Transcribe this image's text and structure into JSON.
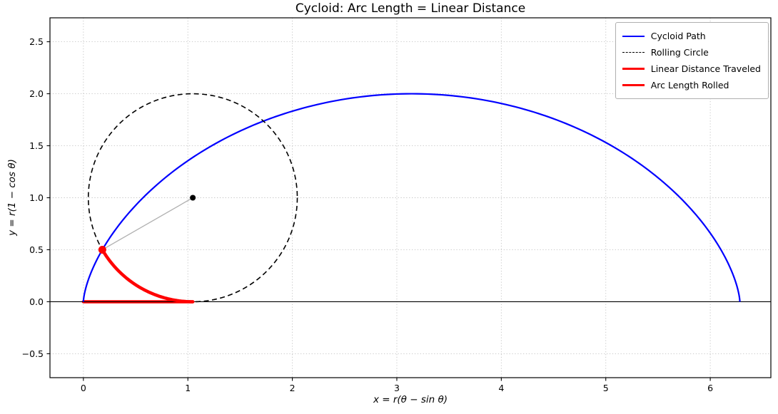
{
  "chart_data": {
    "type": "line",
    "title": "Cycloid: Arc Length = Linear Distance",
    "xlabel": "x = r(θ − sin θ)",
    "ylabel": "y = r(1 − cos θ)",
    "xlim": [
      -0.32,
      6.58
    ],
    "ylim": [
      -0.73,
      2.73
    ],
    "xticks": [
      0,
      1,
      2,
      3,
      4,
      5,
      6
    ],
    "xtick_labels": [
      "0",
      "1",
      "2",
      "3",
      "4",
      "5",
      "6"
    ],
    "yticks": [
      -0.5,
      0.0,
      0.5,
      1.0,
      1.5,
      2.0,
      2.5
    ],
    "ytick_labels": [
      "−0.5",
      "0.0",
      "0.5",
      "1.0",
      "1.5",
      "2.0",
      "2.5"
    ],
    "grid": true,
    "legend_position": "upper right",
    "radius": 1,
    "theta_range": [
      0,
      6.2832
    ],
    "theta_current": 1.0472,
    "circle_center": [
      1.0472,
      1.0
    ],
    "tracing_point": [
      0.1812,
      0.5
    ],
    "contact_point": [
      1.0472,
      0.0
    ],
    "cycloid_start": [
      0.0,
      0.0
    ],
    "cycloid_peak": [
      3.1416,
      2.0
    ],
    "cycloid_end": [
      6.2832,
      0.0
    ],
    "linear_distance_traveled": 1.0472,
    "arc_length_rolled": 1.0472,
    "series": [
      {
        "name": "Cycloid Path",
        "color": "#0000ff",
        "style": "solid",
        "line_width": 2.2
      },
      {
        "name": "Rolling Circle",
        "color": "#000000",
        "style": "dashed",
        "line_width": 1.6
      },
      {
        "name": "Linear Distance Traveled",
        "color": "#ff0000",
        "style": "solid",
        "line_width": 4.5
      },
      {
        "name": "Arc Length Rolled",
        "color": "#ff0000",
        "style": "solid",
        "line_width": 4.5
      }
    ],
    "colors": {
      "background": "#ffffff",
      "grid": "#c4c4c4",
      "frame": "#000000",
      "baseline_axis": "#000000",
      "spoke": "#b0b0b0",
      "center_marker": "#000000",
      "tracing_marker": "#ff0000"
    }
  }
}
